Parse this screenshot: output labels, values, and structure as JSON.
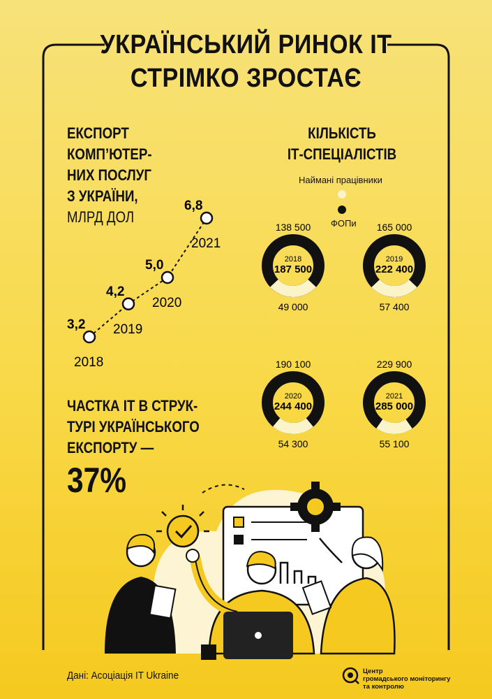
{
  "title": {
    "line1": "УКРАЇНСЬКИЙ РИНОК ІТ",
    "line2": "СТРІМКО ЗРОСТАЄ"
  },
  "export": {
    "title_lines": [
      "ЕКСПОРТ",
      "КОМП’ЮТЕР-",
      "НИХ ПОСЛУГ",
      "З УКРАЇНИ,"
    ],
    "unit": "МЛРД ДОЛ"
  },
  "specialists": {
    "title_lines": [
      "КІЛЬКІСТЬ",
      "ІТ-СПЕЦІАЛІСТІВ"
    ],
    "legend_employed": "Наймані працівники",
    "legend_fop": "ФОПи"
  },
  "share": {
    "lines": [
      "ЧАСТКА ІТ В СТРУК-",
      "ТУРІ УКРАЇНСЬКОГО",
      "ЕКСПОРТУ —"
    ],
    "value": "37%"
  },
  "source": "Дані: Асоціація IT Ukraine",
  "logo_lines": [
    "Центр",
    "громадського моніторингу",
    "та контролю"
  ],
  "colors": {
    "background_top": "#f7e27a",
    "background_bottom": "#f5c91f",
    "dark": "#111111",
    "light": "#fbf3c9"
  },
  "chart_data": [
    {
      "type": "line",
      "x": [
        "2018",
        "2019",
        "2020",
        "2021"
      ],
      "values": [
        3.2,
        4.2,
        5.0,
        6.8
      ],
      "value_labels": [
        "3,2",
        "4,2",
        "5,0",
        "6,8"
      ]
    },
    {
      "type": "pie",
      "donuts": [
        {
          "year": "2018",
          "total": "187 500",
          "fop": 138500,
          "fop_label": "138 500",
          "employed": 49000,
          "employed_label": "49 000"
        },
        {
          "year": "2019",
          "total": "222 400",
          "fop": 165000,
          "fop_label": "165 000",
          "employed": 57400,
          "employed_label": "57 400"
        },
        {
          "year": "2020",
          "total": "244 400",
          "fop": 190100,
          "fop_label": "190 100",
          "employed": 54300,
          "employed_label": "54 300"
        },
        {
          "year": "2021",
          "total": "285 000",
          "fop": 229900,
          "fop_label": "229 900",
          "employed": 55100,
          "employed_label": "55 100"
        }
      ]
    }
  ]
}
